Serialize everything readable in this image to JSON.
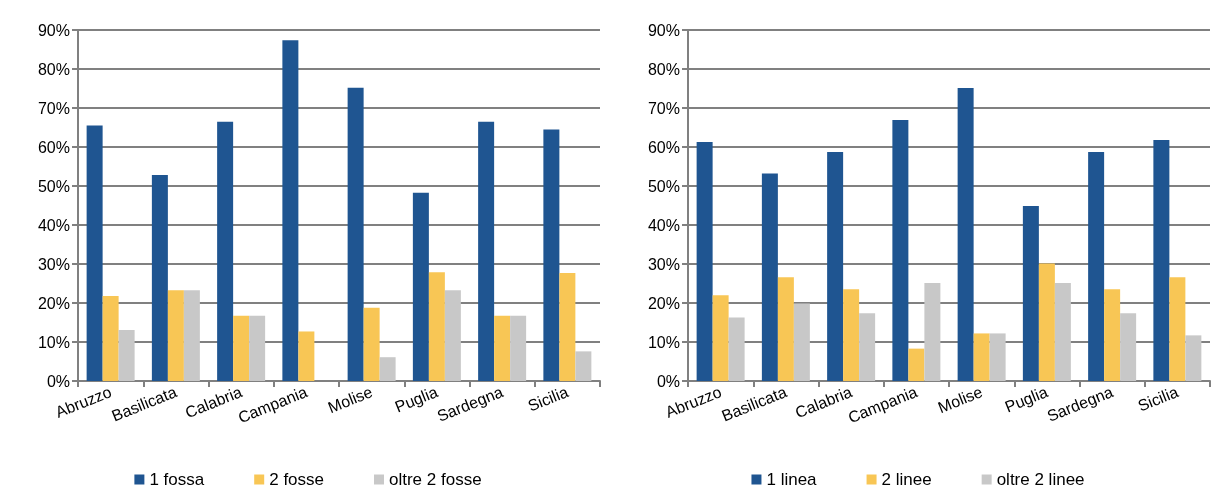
{
  "chart_data": [
    {
      "type": "bar",
      "categories": [
        "Abruzzo",
        "Basilicata",
        "Calabria",
        "Campania",
        "Molise",
        "Puglia",
        "Sardegna",
        "Sicilia"
      ],
      "series": [
        {
          "name": "1 fossa",
          "color": "#1f5591",
          "values": [
            65.5,
            52.8,
            66.5,
            87.4,
            75.2,
            48.3,
            66.5,
            64.5
          ]
        },
        {
          "name": "2 fosse",
          "color": "#f8c655",
          "values": [
            21.8,
            23.3,
            16.7,
            12.7,
            18.8,
            27.9,
            16.7,
            27.7
          ]
        },
        {
          "name": "oltre 2 fosse",
          "color": "#c8c8c8",
          "values": [
            13.1,
            23.3,
            16.7,
            0,
            6.1,
            23.3,
            16.7,
            7.6
          ]
        }
      ],
      "ylim": [
        0,
        90
      ],
      "yticks": [
        {
          "value": 0,
          "label": "0%"
        },
        {
          "value": 10,
          "label": "10%"
        },
        {
          "value": 20,
          "label": "20%"
        },
        {
          "value": 30,
          "label": "30%"
        },
        {
          "value": 40,
          "label": "40%"
        },
        {
          "value": 50,
          "label": "50%"
        },
        {
          "value": 60,
          "label": "60%"
        },
        {
          "value": 70,
          "label": "70%"
        },
        {
          "value": 80,
          "label": "80%"
        },
        {
          "value": 90,
          "label": "90%"
        }
      ],
      "grid": "y",
      "legend": "bottom"
    },
    {
      "type": "bar",
      "categories": [
        "Abruzzo",
        "Basilicata",
        "Calabria",
        "Campania",
        "Molise",
        "Puglia",
        "Sardegna",
        "Sicilia"
      ],
      "series": [
        {
          "name": "1 linea",
          "color": "#1f5591",
          "values": [
            61.3,
            53.2,
            58.7,
            66.9,
            75.1,
            44.9,
            58.7,
            61.8
          ]
        },
        {
          "name": "2 linee",
          "color": "#f8c655",
          "values": [
            22.0,
            26.6,
            23.5,
            8.3,
            12.2,
            30.1,
            23.5,
            26.6
          ]
        },
        {
          "name": "oltre 2 linee",
          "color": "#c8c8c8",
          "values": [
            16.3,
            19.9,
            17.4,
            25.1,
            12.2,
            25.1,
            17.4,
            11.7
          ]
        }
      ],
      "ylim": [
        0,
        90
      ],
      "yticks": [
        {
          "value": 0,
          "label": "0%"
        },
        {
          "value": 10,
          "label": "10%"
        },
        {
          "value": 20,
          "label": "20%"
        },
        {
          "value": 30,
          "label": "30%"
        },
        {
          "value": 40,
          "label": "40%"
        },
        {
          "value": 50,
          "label": "50%"
        },
        {
          "value": 60,
          "label": "60%"
        },
        {
          "value": 70,
          "label": "70%"
        },
        {
          "value": 80,
          "label": "80%"
        },
        {
          "value": 90,
          "label": "90%"
        }
      ],
      "grid": "y",
      "legend": "bottom"
    }
  ]
}
